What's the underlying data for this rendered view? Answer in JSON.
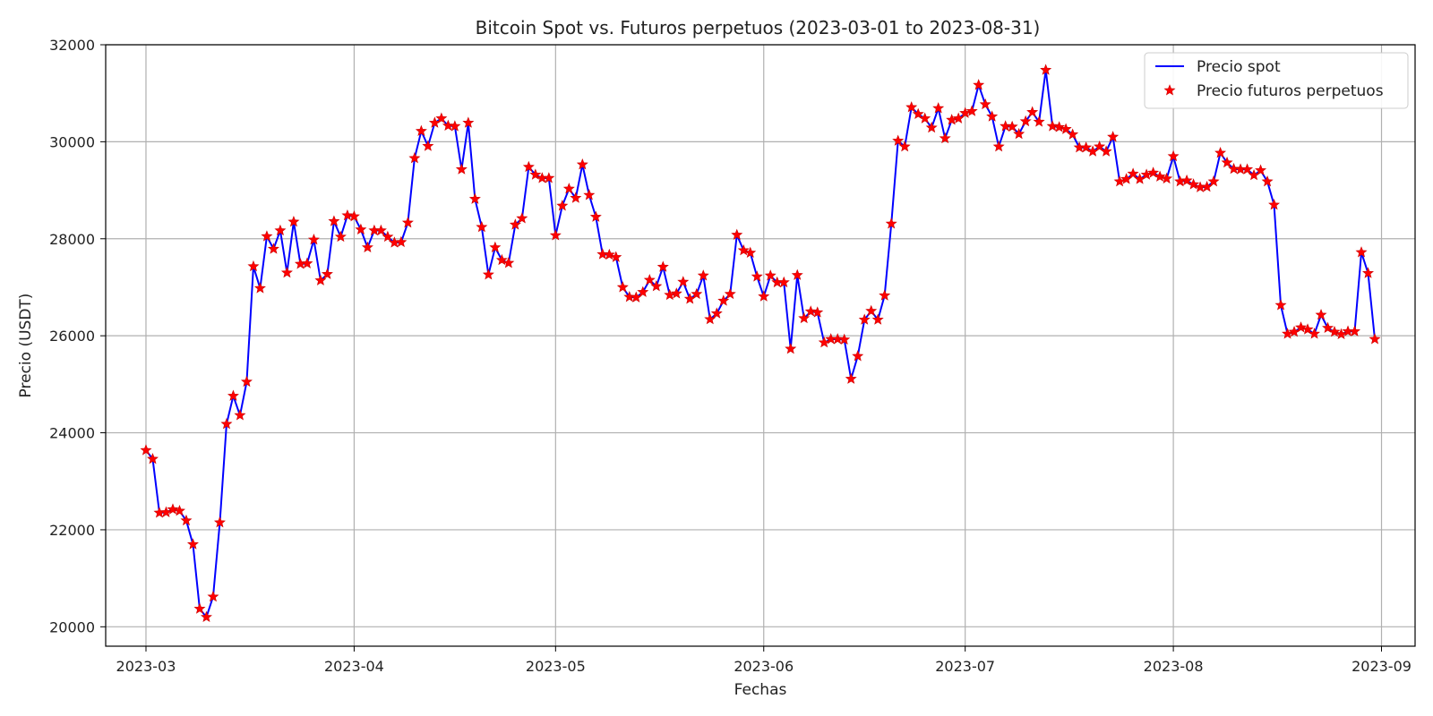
{
  "chart_data": {
    "type": "line",
    "title": "Bitcoin Spot vs. Futuros perpetuos (2023-03-01 to 2023-08-31)",
    "xlabel": "Fechas",
    "ylabel": "Precio (USDT)",
    "x_start": "2023-03-01",
    "xlim": [
      "2023-02-23",
      "2023-09-06"
    ],
    "ylim": [
      19600,
      32000
    ],
    "x_ticks": [
      "2023-03-01",
      "2023-04-01",
      "2023-05-01",
      "2023-06-01",
      "2023-07-01",
      "2023-08-01",
      "2023-09-01"
    ],
    "x_tick_labels": [
      "2023-03",
      "2023-04",
      "2023-05",
      "2023-06",
      "2023-07",
      "2023-08",
      "2023-09"
    ],
    "y_ticks": [
      20000,
      22000,
      24000,
      26000,
      28000,
      30000,
      32000
    ],
    "grid": true,
    "legend_position": "top-right",
    "series": [
      {
        "name": "Precio spot",
        "style": "line",
        "color": "#0000ff",
        "values": [
          23640,
          23460,
          22350,
          22360,
          22420,
          22390,
          22190,
          21700,
          20370,
          20200,
          20620,
          22150,
          24180,
          24760,
          24360,
          25050,
          27430,
          26980,
          28050,
          27790,
          28170,
          27300,
          28350,
          27480,
          27490,
          27980,
          27140,
          27270,
          28360,
          28040,
          28480,
          28460,
          28190,
          27820,
          28170,
          28170,
          28040,
          27920,
          27930,
          28330,
          29660,
          30220,
          29910,
          30390,
          30480,
          30330,
          30320,
          29430,
          30390,
          28820,
          28240,
          27260,
          27820,
          27560,
          27500,
          28290,
          28420,
          29480,
          29320,
          29250,
          29250,
          28070,
          28680,
          29030,
          28840,
          29530,
          28900,
          28450,
          27680,
          27670,
          27620,
          27000,
          26800,
          26790,
          26900,
          27150,
          27020,
          27420,
          26840,
          26870,
          27110,
          26760,
          26860,
          27240,
          26340,
          26460,
          26720,
          26860,
          28080,
          27760,
          27710,
          27220,
          26810,
          27240,
          27100,
          27100,
          25730,
          27250,
          26360,
          26500,
          26480,
          25860,
          25930,
          25930,
          25920,
          25110,
          25580,
          26330,
          26510,
          26330,
          26830,
          28310,
          30020,
          29900,
          30710,
          30570,
          30480,
          30290,
          30690,
          30070,
          30450,
          30480,
          30590,
          30630,
          31170,
          30770,
          30520,
          29900,
          30320,
          30310,
          30160,
          30420,
          30610,
          30410,
          31480,
          30320,
          30300,
          30260,
          30150,
          29880,
          29880,
          29800,
          29900,
          29800,
          30100,
          29180,
          29230,
          29340,
          29230,
          29320,
          29360,
          29280,
          29240,
          29700,
          29180,
          29200,
          29120,
          29060,
          29070,
          29180,
          29770,
          29570,
          29440,
          29430,
          29430,
          29310,
          29410,
          29180,
          28700,
          26630,
          26040,
          26080,
          26170,
          26130,
          26040,
          26430,
          26160,
          26080,
          26030,
          26090,
          26090,
          27720,
          27290,
          25930
        ]
      },
      {
        "name": "Precio futuros perpetuos",
        "style": "star-marker",
        "color": "#ff0000",
        "values": [
          23640,
          23460,
          22350,
          22360,
          22420,
          22390,
          22190,
          21700,
          20370,
          20200,
          20620,
          22150,
          24180,
          24760,
          24360,
          25050,
          27430,
          26980,
          28050,
          27790,
          28170,
          27300,
          28350,
          27480,
          27490,
          27980,
          27140,
          27270,
          28360,
          28040,
          28480,
          28460,
          28190,
          27820,
          28170,
          28170,
          28040,
          27920,
          27930,
          28330,
          29660,
          30220,
          29910,
          30390,
          30480,
          30330,
          30320,
          29430,
          30390,
          28820,
          28240,
          27260,
          27820,
          27560,
          27500,
          28290,
          28420,
          29480,
          29320,
          29250,
          29250,
          28070,
          28680,
          29030,
          28840,
          29530,
          28900,
          28450,
          27680,
          27670,
          27620,
          27000,
          26800,
          26790,
          26900,
          27150,
          27020,
          27420,
          26840,
          26870,
          27110,
          26760,
          26860,
          27240,
          26340,
          26460,
          26720,
          26860,
          28080,
          27760,
          27710,
          27220,
          26810,
          27240,
          27100,
          27100,
          25730,
          27250,
          26360,
          26500,
          26480,
          25860,
          25930,
          25930,
          25920,
          25110,
          25580,
          26330,
          26510,
          26330,
          26830,
          28310,
          30020,
          29900,
          30710,
          30570,
          30480,
          30290,
          30690,
          30070,
          30450,
          30480,
          30590,
          30630,
          31170,
          30770,
          30520,
          29900,
          30320,
          30310,
          30160,
          30420,
          30610,
          30410,
          31480,
          30320,
          30300,
          30260,
          30150,
          29880,
          29880,
          29800,
          29900,
          29800,
          30100,
          29180,
          29230,
          29340,
          29230,
          29320,
          29360,
          29280,
          29240,
          29700,
          29180,
          29200,
          29120,
          29060,
          29070,
          29180,
          29770,
          29570,
          29440,
          29430,
          29430,
          29310,
          29410,
          29180,
          28700,
          26630,
          26040,
          26080,
          26170,
          26130,
          26040,
          26430,
          26160,
          26080,
          26030,
          26090,
          26090,
          27720,
          27290,
          25930
        ]
      }
    ]
  }
}
